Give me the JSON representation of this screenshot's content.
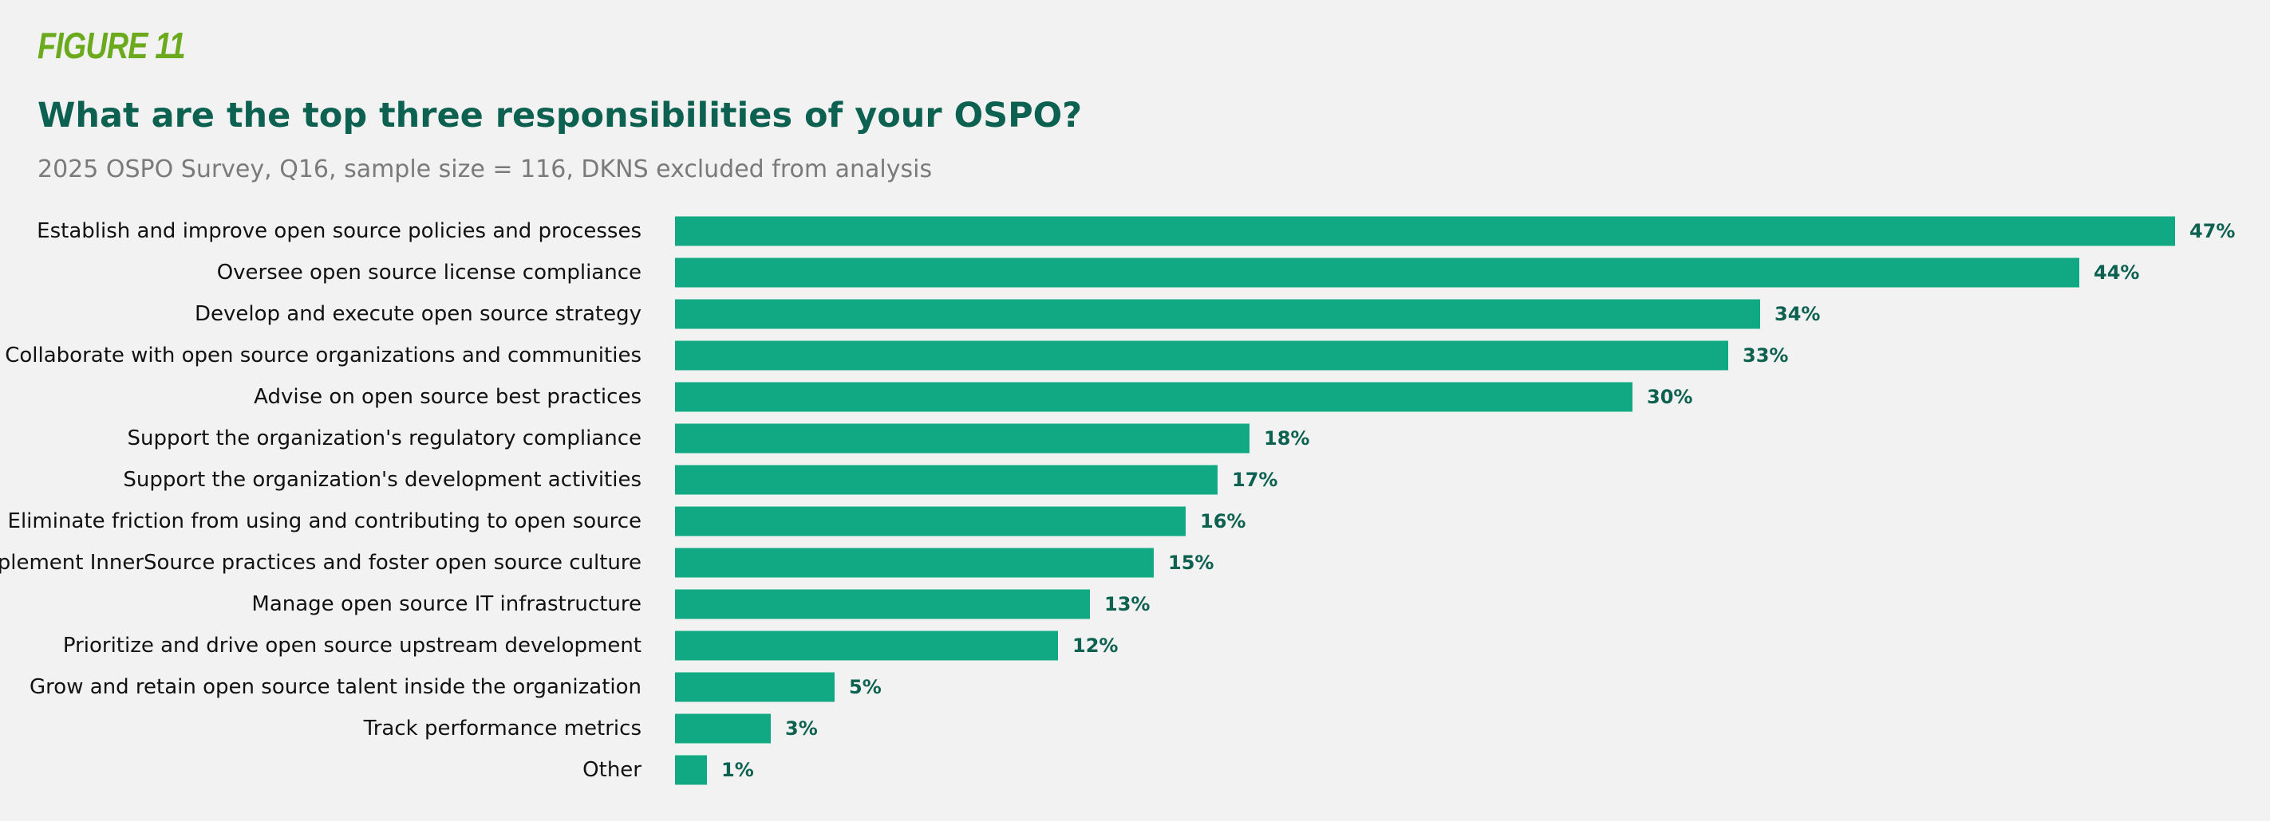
{
  "figure_label": "FIGURE 11",
  "title": "What are the top three responsibilities of your OSPO?",
  "subtitle": "2025 OSPO Survey, Q16, sample size = 116, DKNS excluded from analysis",
  "colors": {
    "bar": "#10a983",
    "value_label": "#0d6150",
    "title": "#0d6150",
    "figure_label": "#6aaa1c",
    "background": "#f2f2f2"
  },
  "chart_data": {
    "type": "bar",
    "orientation": "horizontal",
    "title": "What are the top three responsibilities of your OSPO?",
    "subtitle": "2025 OSPO Survey, Q16, sample size = 116, DKNS excluded from analysis",
    "categories": [
      "Establish and improve open source policies and processes",
      "Oversee open source license compliance",
      "Develop and execute open source strategy",
      "Collaborate with open source organizations and communities",
      "Advise on open source best practices",
      "Support the organization's regulatory compliance",
      "Support the organization's development activities",
      "Eliminate friction from using and contributing to open source",
      "Implement InnerSource practices and foster open source culture",
      "Manage open source IT infrastructure",
      "Prioritize and drive open source upstream development",
      "Grow and retain open source talent inside the organization",
      "Track performance metrics",
      "Other"
    ],
    "values": [
      47,
      44,
      34,
      33,
      30,
      18,
      17,
      16,
      15,
      13,
      12,
      5,
      3,
      1
    ],
    "value_labels": [
      "47%",
      "44%",
      "34%",
      "33%",
      "30%",
      "18%",
      "17%",
      "16%",
      "15%",
      "13%",
      "12%",
      "5%",
      "3%",
      "1%"
    ],
    "unit": "%",
    "grid": false,
    "legend": "none"
  }
}
